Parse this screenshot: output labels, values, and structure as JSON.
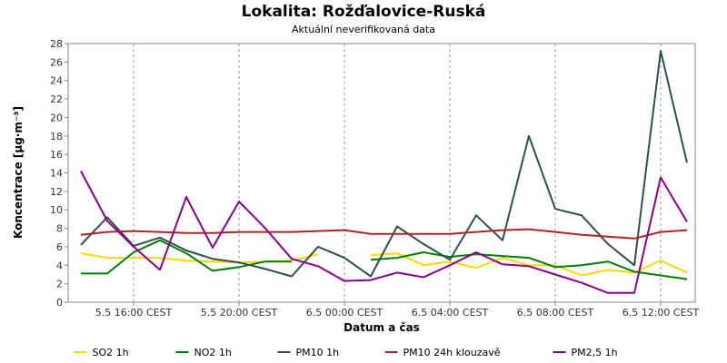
{
  "chart_data": {
    "type": "line",
    "title": "Lokalita: Rožďalovice-Ruská",
    "subtitle": "Aktuální neverifikovaná data",
    "xlabel": "Datum a čas",
    "ylabel": "Koncentrace [µg·m⁻³]",
    "ylim": [
      0,
      28
    ],
    "y_ticks": [
      "0",
      "2",
      "4",
      "6",
      "8",
      "10",
      "12",
      "14",
      "16",
      "18",
      "20",
      "22",
      "24",
      "26",
      "28"
    ],
    "x_tick_labels": [
      "5.5 16:00 CEST",
      "5.5 20:00 CEST",
      "6.5 00:00 CEST",
      "6.5 04:00 CEST",
      "6.5 08:00 CEST",
      "6.5 12:00 CEST"
    ],
    "x_tick_index": [
      2,
      6,
      10,
      14,
      18,
      22
    ],
    "grid": true,
    "legend_position": "bottom",
    "series": [
      {
        "name": "SO2 1h",
        "color": "#ffd800",
        "values": [
          5.3,
          4.8,
          4.8,
          4.8,
          4.5,
          4.4,
          4.3,
          4.4,
          4.5,
          5.2,
          null,
          5.1,
          5.3,
          4.0,
          4.4,
          3.7,
          4.8,
          4.0,
          4.0,
          2.9,
          3.5,
          3.2,
          4.5,
          3.2
        ]
      },
      {
        "name": "NO2 1h",
        "color": "#008000",
        "values": [
          3.1,
          3.1,
          5.4,
          6.7,
          5.3,
          3.4,
          3.8,
          4.4,
          4.4,
          null,
          null,
          4.6,
          4.8,
          5.4,
          4.9,
          5.2,
          5.0,
          4.8,
          3.8,
          4.0,
          4.4,
          3.3,
          2.9,
          2.5
        ]
      },
      {
        "name": "PM10 1h",
        "color": "#2f4f4f",
        "values": [
          6.2,
          9.2,
          6.1,
          7.0,
          5.6,
          4.7,
          4.3,
          3.6,
          2.8,
          6.0,
          4.8,
          2.8,
          8.2,
          6.3,
          4.6,
          9.4,
          6.7,
          18.0,
          10.1,
          9.4,
          6.3,
          4.0,
          27.2,
          15.1
        ]
      },
      {
        "name": "PM10 24h klouzavě",
        "color": "#b22222",
        "values": [
          7.3,
          7.6,
          7.7,
          7.6,
          7.5,
          7.5,
          7.6,
          7.6,
          7.6,
          7.7,
          7.8,
          7.4,
          7.4,
          7.4,
          7.4,
          7.6,
          7.8,
          7.9,
          7.6,
          7.3,
          7.1,
          6.9,
          7.6,
          7.8
        ]
      },
      {
        "name": "PM2,5 1h",
        "color": "#8b008b",
        "values": [
          14.2,
          8.8,
          6.0,
          3.5,
          11.4,
          5.9,
          10.9,
          8.0,
          4.7,
          3.9,
          2.3,
          2.4,
          3.2,
          2.7,
          4.0,
          5.4,
          4.1,
          3.9,
          3.0,
          2.1,
          1.0,
          1.0,
          13.5,
          8.7
        ]
      }
    ]
  }
}
